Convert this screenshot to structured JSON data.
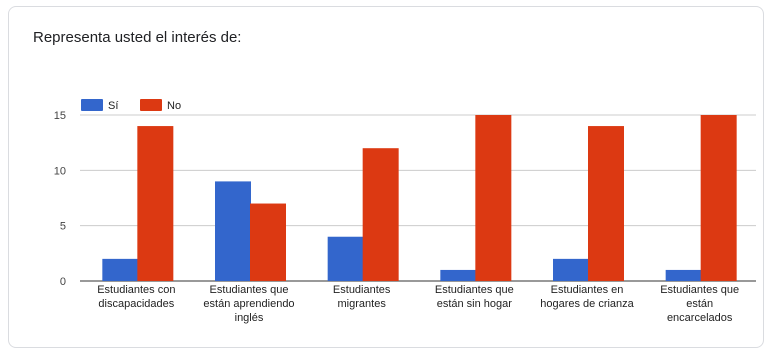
{
  "question_title": "Representa usted el interés de:",
  "chart_data": {
    "type": "bar",
    "title": "Representa usted el interés de:",
    "categories": [
      [
        "Estudiantes con",
        "discapacidades"
      ],
      [
        "Estudiantes que",
        "están aprendiendo",
        "inglés"
      ],
      [
        "Estudiantes",
        "migrantes"
      ],
      [
        "Estudiantes que",
        "están sin hogar"
      ],
      [
        "Estudiantes en",
        "hogares de crianza"
      ],
      [
        "Estudiantes que",
        "están",
        "encarcelados"
      ]
    ],
    "series": [
      {
        "name": "Sí",
        "color": "#3366cc",
        "values": [
          2,
          9,
          4,
          1,
          2,
          1
        ]
      },
      {
        "name": "No",
        "color": "#dc3912",
        "values": [
          14,
          7,
          12,
          15,
          14,
          15
        ]
      }
    ],
    "yticks": [
      0,
      5,
      10,
      15
    ],
    "ylim": [
      0,
      15
    ],
    "grid": true,
    "legend_position": "top-left"
  }
}
